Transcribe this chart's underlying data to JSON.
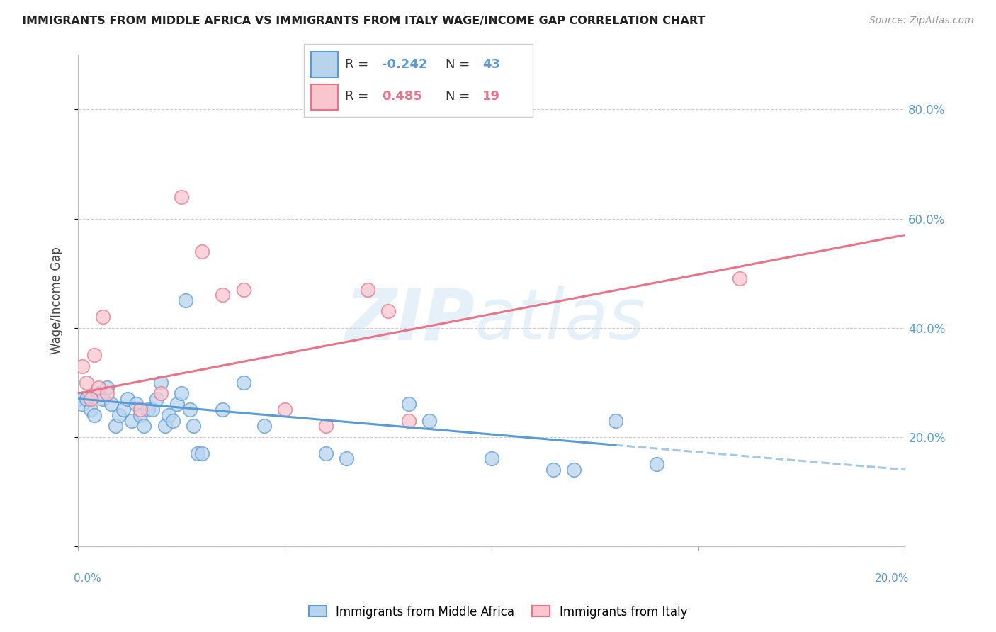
{
  "title": "IMMIGRANTS FROM MIDDLE AFRICA VS IMMIGRANTS FROM ITALY WAGE/INCOME GAP CORRELATION CHART",
  "source": "Source: ZipAtlas.com",
  "ylabel": "Wage/Income Gap",
  "right_yticklabels": [
    "20.0%",
    "40.0%",
    "60.0%",
    "80.0%"
  ],
  "right_ytick_vals": [
    20,
    40,
    60,
    80
  ],
  "series1_label": "Immigrants from Middle Africa",
  "series1_color": "#b8d4ed",
  "series1_line_color": "#5b9bd5",
  "series1_R": -0.242,
  "series1_N": 43,
  "series2_label": "Immigrants from Italy",
  "series2_color": "#f9c6ce",
  "series2_line_color": "#e8748a",
  "series2_R": 0.485,
  "series2_N": 19,
  "blue_scatter_x": [
    0.0,
    0.1,
    0.2,
    0.3,
    0.4,
    0.5,
    0.6,
    0.7,
    0.8,
    0.9,
    1.0,
    1.1,
    1.2,
    1.3,
    1.4,
    1.5,
    1.6,
    1.7,
    1.8,
    1.9,
    2.0,
    2.1,
    2.2,
    2.3,
    2.4,
    2.5,
    2.6,
    2.7,
    2.8,
    2.9,
    3.0,
    3.5,
    4.0,
    4.5,
    6.0,
    6.5,
    8.0,
    8.5,
    10.0,
    11.5,
    12.0,
    13.0,
    14.0
  ],
  "blue_scatter_y": [
    27,
    26,
    27,
    25,
    24,
    28,
    27,
    29,
    26,
    22,
    24,
    25,
    27,
    23,
    26,
    24,
    22,
    25,
    25,
    27,
    30,
    22,
    24,
    23,
    26,
    28,
    45,
    25,
    22,
    17,
    17,
    25,
    30,
    22,
    17,
    16,
    26,
    23,
    16,
    14,
    14,
    23,
    15
  ],
  "pink_scatter_x": [
    0.1,
    0.2,
    0.3,
    0.4,
    0.5,
    0.6,
    0.7,
    1.5,
    2.0,
    2.5,
    3.0,
    3.5,
    4.0,
    5.0,
    6.0,
    7.0,
    7.5,
    8.0,
    16.0
  ],
  "pink_scatter_y": [
    33,
    30,
    27,
    35,
    29,
    42,
    28,
    25,
    28,
    64,
    54,
    46,
    47,
    25,
    22,
    47,
    43,
    23,
    49
  ],
  "xlim": [
    0,
    20
  ],
  "ylim": [
    0,
    90
  ],
  "blue_line_x0": 0,
  "blue_line_x1": 13,
  "blue_line_y0": 27,
  "blue_line_y1": 18.5,
  "blue_dash_x0": 13,
  "blue_dash_x1": 20,
  "blue_dash_y0": 18.5,
  "blue_dash_y1": 14,
  "pink_line_x0": 0,
  "pink_line_x1": 20,
  "pink_line_y0": 28,
  "pink_line_y1": 57
}
